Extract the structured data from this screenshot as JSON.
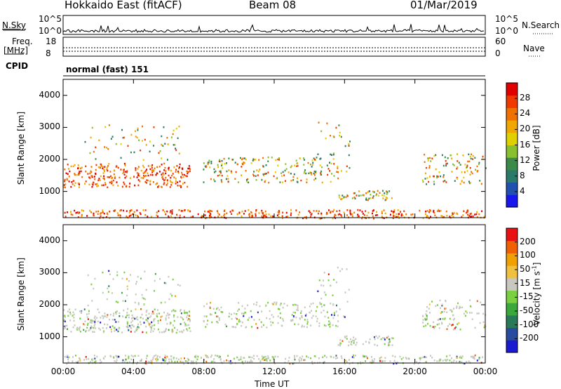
{
  "header": {
    "station": "Hokkaido East (fitACF)",
    "beam": "Beam 08",
    "date": "01/Mar/2019"
  },
  "top_panel": {
    "nsky_label": "N.Sky",
    "nsearch_label": "N.Search",
    "left_ticks": [
      "10^5",
      "10^0"
    ],
    "right_ticks": [
      "10^5",
      "10^0"
    ],
    "freq_label": "Freq.",
    "freq_unit": "[MHz]",
    "freq_ticks": [
      "18",
      "8"
    ],
    "nave_label": "Nave",
    "nave_ticks": [
      "60",
      "0"
    ],
    "cpid_label": "CPID",
    "cpid_value": "normal (fast) 151"
  },
  "chart_data": [
    {
      "type": "heatmap",
      "parameter": "power",
      "xlabel": "Time UT",
      "ylabel": "Slant Range [km]",
      "xlim": [
        "00:00",
        "24:00"
      ],
      "ylim": [
        180,
        4500
      ],
      "x_ticks": [
        "00:00",
        "04:00",
        "08:00",
        "12:00",
        "16:00",
        "20:00",
        "00:00"
      ],
      "y_ticks": [
        1000,
        2000,
        3000,
        4000
      ],
      "colorbar": {
        "label": "Power [dB]",
        "ticks": [
          "4",
          "8",
          "12",
          "16",
          "20",
          "24",
          "28"
        ],
        "colors": [
          "#1818ee",
          "#2050b0",
          "#2a7a6a",
          "#3a8a48",
          "#88c030",
          "#e0d000",
          "#f0a800",
          "#f07000",
          "#f03800",
          "#e00000"
        ]
      }
    },
    {
      "type": "heatmap",
      "parameter": "velocity",
      "xlabel": "Time UT",
      "ylabel": "Slant Range [km]",
      "xlim": [
        "00:00",
        "24:00"
      ],
      "ylim": [
        180,
        4500
      ],
      "x_ticks": [
        "00:00",
        "04:00",
        "08:00",
        "12:00",
        "16:00",
        "20:00",
        "00:00"
      ],
      "y_ticks": [
        1000,
        2000,
        3000,
        4000
      ],
      "colorbar": {
        "label": "Velocity [m s",
        "label_superscript": "-1",
        "label_close": "]",
        "ticks": [
          "200",
          "100",
          "50",
          "15",
          "-15",
          "-50",
          "-100",
          "-200"
        ],
        "colors": [
          "#1a1ad0",
          "#2a4aa0",
          "#2a7a5a",
          "#3aa83a",
          "#7ad040",
          "#c8c8c0",
          "#f0c040",
          "#f0a000",
          "#f06000",
          "#e81010"
        ]
      }
    }
  ],
  "axis": {
    "xlabel": "Time UT"
  }
}
